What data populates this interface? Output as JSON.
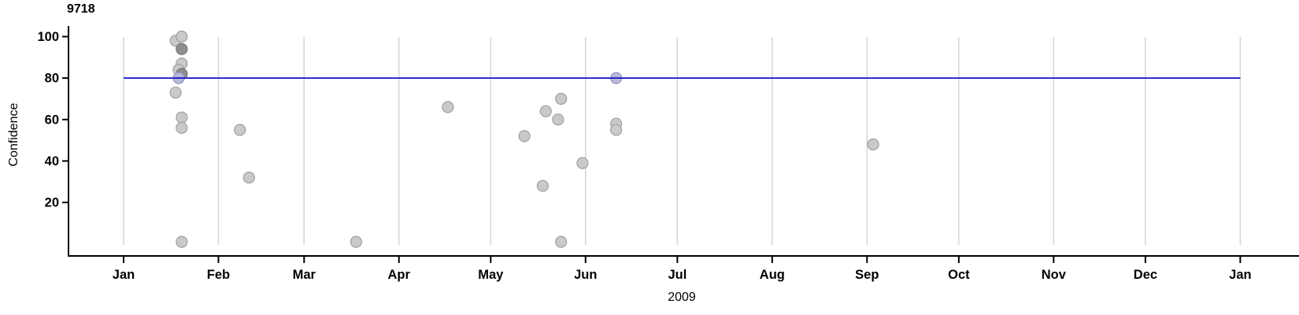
{
  "chart_data": {
    "type": "scatter",
    "title": "9718",
    "xlabel": "2009",
    "ylabel": "Confidence",
    "x_axis": {
      "start": "2009-01-01",
      "end": "2010-01-01",
      "tick_labels": [
        "Jan",
        "Feb",
        "Mar",
        "Apr",
        "May",
        "Jun",
        "Jul",
        "Aug",
        "Sep",
        "Oct",
        "Nov",
        "Dec",
        "Jan"
      ],
      "grid": true
    },
    "y_axis": {
      "ticks": [
        20,
        40,
        60,
        80,
        100
      ],
      "range": [
        0,
        105
      ],
      "grid": false
    },
    "threshold_line": {
      "y": 80,
      "color": "#1111c4"
    },
    "colors": {
      "gray_fill": "#c9c9c9",
      "gray_stroke": "#a0a0a0",
      "dark_fill": "#8f8f8f",
      "dark_stroke": "#747474",
      "highlight_fill": "#b9b9da",
      "highlight_stroke": "#9595c4",
      "gridline": "#d5d5d5",
      "axis": "#000000"
    },
    "points": [
      {
        "date": "2009-01-18",
        "confidence": 98,
        "style": "gray"
      },
      {
        "date": "2009-01-20",
        "confidence": 100,
        "style": "gray"
      },
      {
        "date": "2009-01-20",
        "confidence": 94,
        "style": "dark"
      },
      {
        "date": "2009-01-20",
        "confidence": 87,
        "style": "gray"
      },
      {
        "date": "2009-01-19",
        "confidence": 84,
        "style": "gray"
      },
      {
        "date": "2009-01-20",
        "confidence": 82,
        "style": "dark"
      },
      {
        "date": "2009-01-19",
        "confidence": 80,
        "style": "highlight"
      },
      {
        "date": "2009-01-18",
        "confidence": 73,
        "style": "gray"
      },
      {
        "date": "2009-01-20",
        "confidence": 61,
        "style": "gray"
      },
      {
        "date": "2009-01-20",
        "confidence": 56,
        "style": "gray"
      },
      {
        "date": "2009-01-20",
        "confidence": 1,
        "style": "gray"
      },
      {
        "date": "2009-02-08",
        "confidence": 55,
        "style": "gray"
      },
      {
        "date": "2009-02-11",
        "confidence": 32,
        "style": "gray"
      },
      {
        "date": "2009-03-18",
        "confidence": 1,
        "style": "gray"
      },
      {
        "date": "2009-04-17",
        "confidence": 66,
        "style": "gray"
      },
      {
        "date": "2009-05-12",
        "confidence": 52,
        "style": "gray"
      },
      {
        "date": "2009-05-19",
        "confidence": 64,
        "style": "gray"
      },
      {
        "date": "2009-05-18",
        "confidence": 28,
        "style": "gray"
      },
      {
        "date": "2009-05-23",
        "confidence": 60,
        "style": "gray"
      },
      {
        "date": "2009-05-24",
        "confidence": 70,
        "style": "gray"
      },
      {
        "date": "2009-05-24",
        "confidence": 1,
        "style": "gray"
      },
      {
        "date": "2009-05-31",
        "confidence": 39,
        "style": "gray"
      },
      {
        "date": "2009-06-11",
        "confidence": 80,
        "style": "highlight"
      },
      {
        "date": "2009-06-11",
        "confidence": 58,
        "style": "gray"
      },
      {
        "date": "2009-06-11",
        "confidence": 55,
        "style": "gray"
      },
      {
        "date": "2009-09-03",
        "confidence": 48,
        "style": "gray"
      }
    ]
  }
}
